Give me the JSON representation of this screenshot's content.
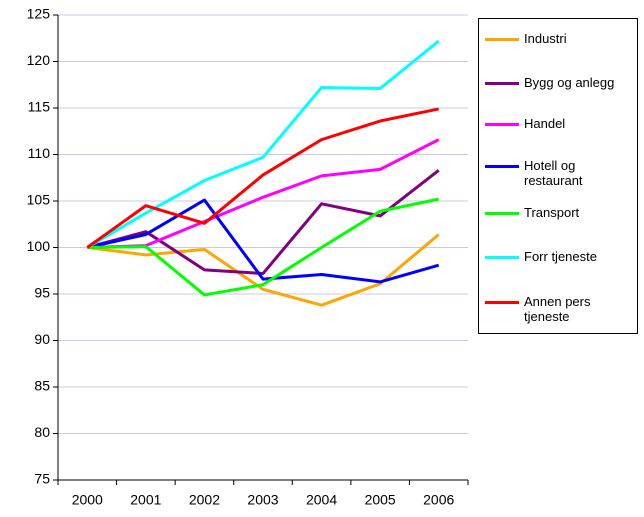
{
  "chart_data": {
    "type": "line",
    "categories": [
      "2000",
      "2001",
      "2002",
      "2003",
      "2004",
      "2005",
      "2006"
    ],
    "series": [
      {
        "name": "Industri",
        "color": "#ffa500",
        "values": [
          100,
          99.2,
          99.8,
          95.5,
          93.8,
          96.1,
          101.4
        ]
      },
      {
        "name": "Bygg og anlegg",
        "color": "#800080",
        "values": [
          100,
          101.7,
          97.6,
          97.2,
          104.7,
          103.4,
          108.3
        ]
      },
      {
        "name": "Handel",
        "color": "#ff00ff",
        "values": [
          100,
          100.2,
          102.8,
          105.4,
          107.7,
          108.4,
          111.6
        ]
      },
      {
        "name": "Hotell og restaurant",
        "color": "#0000ff",
        "values": [
          100,
          101.4,
          105.1,
          96.6,
          97.1,
          96.3,
          98.1
        ]
      },
      {
        "name": "Transport",
        "color": "#00ff00",
        "values": [
          100,
          100.1,
          94.9,
          96.0,
          100.0,
          103.9,
          105.2
        ]
      },
      {
        "name": "Forr tjeneste",
        "color": "#00ffff",
        "values": [
          100,
          103.7,
          107.2,
          109.7,
          117.2,
          117.1,
          122.2
        ]
      },
      {
        "name": "Annen pers tjeneste",
        "color": "#ff0000",
        "values": [
          100,
          104.5,
          102.6,
          107.8,
          111.6,
          113.6,
          114.9
        ]
      }
    ],
    "ylim": [
      75,
      125
    ],
    "yticks": [
      75,
      80,
      85,
      90,
      95,
      100,
      105,
      110,
      115,
      120,
      125
    ],
    "grid": true,
    "legend": "right"
  }
}
